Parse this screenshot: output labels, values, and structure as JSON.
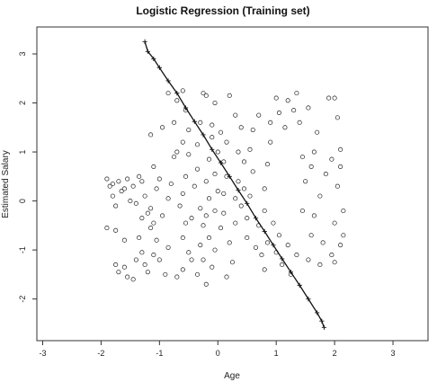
{
  "chart_data": {
    "type": "scatter",
    "title": "Logistic Regression (Training set)",
    "xlabel": "Age",
    "ylabel": "Estimated Salary",
    "xlim": [
      -3.1,
      3.6
    ],
    "ylim": [
      -2.85,
      3.55
    ],
    "x_ticks": [
      -3,
      -2,
      -1,
      0,
      1,
      2,
      3
    ],
    "y_ticks": [
      -2,
      -1,
      0,
      1,
      2,
      3
    ],
    "grid": false,
    "legend": "none",
    "series": [
      {
        "marker": "open-circle",
        "color": "#222222",
        "points": [
          [
            -1.9,
            0.45
          ],
          [
            -1.85,
            0.3
          ],
          [
            -1.8,
            0.1
          ],
          [
            -1.75,
            -0.1
          ],
          [
            -1.9,
            -0.55
          ],
          [
            -1.8,
            0.35
          ],
          [
            -1.7,
            0.4
          ],
          [
            -1.65,
            0.2
          ],
          [
            -1.6,
            0.25
          ],
          [
            -1.55,
            0.45
          ],
          [
            -1.75,
            -1.3
          ],
          [
            -1.7,
            -1.45
          ],
          [
            -1.6,
            -1.35
          ],
          [
            -1.55,
            -1.55
          ],
          [
            -1.45,
            -1.6
          ],
          [
            -1.75,
            -0.6
          ],
          [
            -1.6,
            -0.8
          ],
          [
            -1.4,
            -1.2
          ],
          [
            -1.35,
            -0.75
          ],
          [
            -1.3,
            -0.35
          ],
          [
            -1.4,
            -0.05
          ],
          [
            -1.45,
            0.3
          ],
          [
            -1.35,
            0.5
          ],
          [
            -1.3,
            0.4
          ],
          [
            -1.25,
            0.1
          ],
          [
            -1.2,
            -0.25
          ],
          [
            -1.15,
            -0.55
          ],
          [
            -1.3,
            -1.05
          ],
          [
            -1.25,
            -1.3
          ],
          [
            -1.2,
            -1.45
          ],
          [
            -1.1,
            -1.1
          ],
          [
            -1.05,
            -0.8
          ],
          [
            -1.1,
            -0.45
          ],
          [
            -1.15,
            -0.15
          ],
          [
            -1.05,
            0.25
          ],
          [
            -1.0,
            0.45
          ],
          [
            -1.1,
            0.7
          ],
          [
            -1.15,
            1.35
          ],
          [
            -0.95,
            1.5
          ],
          [
            -0.85,
            2.2
          ],
          [
            -1.0,
            -1.2
          ],
          [
            -0.9,
            -1.5
          ],
          [
            -0.85,
            -0.95
          ],
          [
            -0.95,
            -0.3
          ],
          [
            -0.85,
            0.05
          ],
          [
            -0.8,
            0.35
          ],
          [
            -0.75,
            0.9
          ],
          [
            -0.7,
            1.0
          ],
          [
            -0.75,
            1.6
          ],
          [
            -0.7,
            2.05
          ],
          [
            -0.6,
            2.25
          ],
          [
            -0.55,
            1.85
          ],
          [
            -0.5,
            1.45
          ],
          [
            -0.6,
            1.2
          ],
          [
            -0.5,
            0.95
          ],
          [
            -0.55,
            0.5
          ],
          [
            -0.6,
            0.15
          ],
          [
            -0.65,
            -0.1
          ],
          [
            -0.55,
            -0.45
          ],
          [
            -0.6,
            -0.75
          ],
          [
            -0.5,
            -1.05
          ],
          [
            -0.6,
            -1.4
          ],
          [
            -0.7,
            -1.55
          ],
          [
            -0.45,
            -0.35
          ],
          [
            -0.4,
            0.3
          ],
          [
            -0.35,
            0.65
          ],
          [
            -0.35,
            1.15
          ],
          [
            -0.3,
            1.6
          ],
          [
            -0.25,
            2.2
          ],
          [
            -0.2,
            2.15
          ],
          [
            -0.3,
            -0.15
          ],
          [
            -0.25,
            -0.5
          ],
          [
            -0.3,
            -0.9
          ],
          [
            -0.25,
            -1.2
          ],
          [
            -0.35,
            -1.5
          ],
          [
            -0.2,
            -1.7
          ],
          [
            -0.15,
            -0.75
          ],
          [
            -0.2,
            -0.3
          ],
          [
            -0.15,
            0.05
          ],
          [
            -0.2,
            0.4
          ],
          [
            -0.15,
            0.85
          ],
          [
            -0.1,
            1.3
          ],
          [
            -0.1,
            1.55
          ],
          [
            -0.05,
            2.0
          ],
          [
            -0.1,
            -1.35
          ],
          [
            -0.05,
            -1.0
          ],
          [
            -0.05,
            -0.2
          ],
          [
            0.0,
            0.2
          ],
          [
            -0.05,
            0.55
          ],
          [
            0.0,
            1.0
          ],
          [
            0.05,
            1.4
          ],
          [
            0.05,
            -0.55
          ],
          [
            0.1,
            -0.25
          ],
          [
            0.1,
            0.15
          ],
          [
            0.15,
            0.5
          ],
          [
            0.1,
            0.8
          ],
          [
            0.15,
            1.2
          ],
          [
            0.2,
            2.15
          ],
          [
            0.2,
            -0.85
          ],
          [
            0.25,
            -1.25
          ],
          [
            0.15,
            -1.55
          ],
          [
            0.3,
            -0.45
          ],
          [
            0.3,
            0.05
          ],
          [
            0.35,
            0.4
          ],
          [
            0.35,
            1.0
          ],
          [
            0.3,
            1.75
          ],
          [
            0.4,
            -0.1
          ],
          [
            0.45,
            0.25
          ],
          [
            0.45,
            0.8
          ],
          [
            0.4,
            1.5
          ],
          [
            0.5,
            -0.35
          ],
          [
            0.5,
            -0.75
          ],
          [
            0.55,
            0.1
          ],
          [
            0.6,
            0.6
          ],
          [
            0.55,
            1.05
          ],
          [
            0.6,
            1.45
          ],
          [
            0.7,
            1.75
          ],
          [
            0.75,
            -1.1
          ],
          [
            0.7,
            -0.5
          ],
          [
            0.8,
            -0.2
          ],
          [
            0.8,
            0.25
          ],
          [
            0.85,
            0.75
          ],
          [
            0.9,
            1.2
          ],
          [
            0.9,
            1.6
          ],
          [
            0.8,
            -1.4
          ],
          [
            0.85,
            -0.85
          ],
          [
            0.95,
            -0.45
          ],
          [
            1.0,
            2.1
          ],
          [
            1.05,
            1.8
          ],
          [
            1.0,
            -1.05
          ],
          [
            1.05,
            -0.7
          ],
          [
            1.1,
            -1.3
          ],
          [
            1.15,
            1.5
          ],
          [
            1.2,
            2.05
          ],
          [
            1.2,
            -0.9
          ],
          [
            1.25,
            -1.5
          ],
          [
            1.3,
            1.85
          ],
          [
            1.35,
            2.2
          ],
          [
            1.35,
            -1.1
          ],
          [
            1.4,
            1.6
          ],
          [
            1.45,
            0.9
          ],
          [
            1.5,
            0.4
          ],
          [
            1.45,
            -0.2
          ],
          [
            1.55,
            -1.2
          ],
          [
            1.6,
            0.7
          ],
          [
            1.65,
            1.0
          ],
          [
            1.7,
            1.4
          ],
          [
            1.6,
            -0.7
          ],
          [
            1.65,
            -0.3
          ],
          [
            1.75,
            0.1
          ],
          [
            1.75,
            -1.3
          ],
          [
            1.8,
            -0.85
          ],
          [
            1.85,
            0.55
          ],
          [
            1.9,
            2.1
          ],
          [
            1.95,
            -1.1
          ],
          [
            2.0,
            -0.45
          ],
          [
            2.05,
            0.3
          ],
          [
            2.05,
            1.7
          ],
          [
            2.0,
            -1.25
          ],
          [
            2.1,
            -0.9
          ],
          [
            2.15,
            -0.7
          ],
          [
            2.1,
            1.05
          ],
          [
            2.0,
            2.1
          ],
          [
            2.15,
            -0.2
          ],
          [
            2.1,
            0.7
          ],
          [
            1.95,
            0.85
          ],
          [
            1.55,
            1.9
          ],
          [
            0.65,
            -0.95
          ],
          [
            -0.45,
            -1.2
          ],
          [
            -1.5,
            0.0
          ]
        ]
      }
    ],
    "boundary": {
      "style": "line-with-plus-marks",
      "points": [
        [
          -1.25,
          3.25
        ],
        [
          -1.2,
          3.05
        ],
        [
          -1.1,
          2.9
        ],
        [
          -1.0,
          2.72
        ],
        [
          -0.85,
          2.45
        ],
        [
          -0.7,
          2.2
        ],
        [
          -0.55,
          1.9
        ],
        [
          -0.4,
          1.62
        ],
        [
          -0.25,
          1.35
        ],
        [
          -0.1,
          1.05
        ],
        [
          0.05,
          0.78
        ],
        [
          0.2,
          0.5
        ],
        [
          0.35,
          0.22
        ],
        [
          0.5,
          -0.05
        ],
        [
          0.65,
          -0.35
        ],
        [
          0.8,
          -0.62
        ],
        [
          0.95,
          -0.9
        ],
        [
          1.1,
          -1.18
        ],
        [
          1.25,
          -1.45
        ],
        [
          1.4,
          -1.72
        ],
        [
          1.55,
          -2.0
        ],
        [
          1.7,
          -2.28
        ],
        [
          1.78,
          -2.45
        ],
        [
          1.82,
          -2.58
        ]
      ]
    }
  }
}
